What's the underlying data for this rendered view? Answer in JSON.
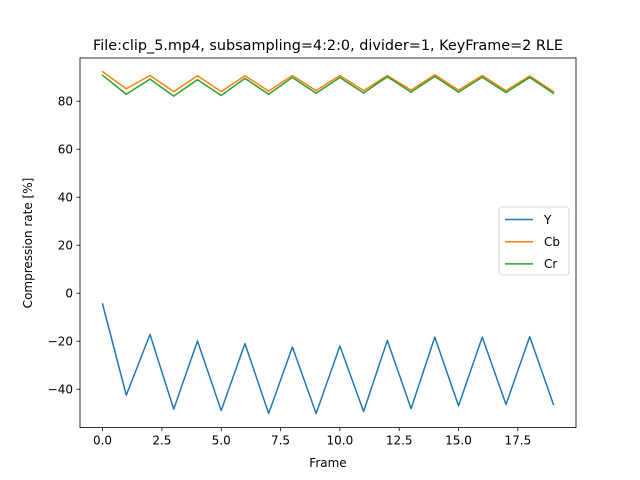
{
  "chart_data": {
    "type": "line",
    "title": "File:clip_5.mp4, subsampling=4:2:0, divider=1, KeyFrame=2 RLE",
    "xlabel": "Frame",
    "ylabel": "Compression rate [%]",
    "xlim": [
      -0.95,
      19.95
    ],
    "ylim": [
      -56,
      98
    ],
    "xticks": [
      0,
      2.5,
      5,
      7.5,
      10,
      12.5,
      15,
      17.5
    ],
    "xtick_labels": [
      "0.0",
      "2.5",
      "5.0",
      "7.5",
      "10.0",
      "12.5",
      "15.0",
      "17.5"
    ],
    "yticks": [
      -40,
      -20,
      0,
      20,
      40,
      60,
      80
    ],
    "ytick_labels": [
      "−40",
      "−20",
      "0",
      "20",
      "40",
      "60",
      "80"
    ],
    "grid": false,
    "legend_position": "center-right",
    "x": [
      0,
      1,
      2,
      3,
      4,
      5,
      6,
      7,
      8,
      9,
      10,
      11,
      12,
      13,
      14,
      15,
      16,
      17,
      18,
      19
    ],
    "series": [
      {
        "name": "Y",
        "color": "#1f77b4",
        "values": [
          -4.5,
          -42.5,
          -17.2,
          -48.3,
          -19.9,
          -48.9,
          -21.0,
          -50.1,
          -22.4,
          -50.1,
          -22.0,
          -49.3,
          -19.7,
          -48.1,
          -18.3,
          -46.9,
          -18.3,
          -46.4,
          -18.1,
          -46.4
        ]
      },
      {
        "name": "Cb",
        "color": "#ff7f0e",
        "values": [
          92.3,
          85.2,
          90.7,
          84.0,
          90.6,
          84.0,
          90.6,
          84.2,
          90.7,
          84.4,
          90.7,
          84.4,
          90.7,
          84.6,
          91.0,
          84.6,
          90.7,
          84.4,
          90.5,
          84.0
        ]
      },
      {
        "name": "Cr",
        "color": "#2ca02c",
        "values": [
          90.8,
          82.9,
          89.2,
          82.1,
          89.0,
          82.4,
          89.5,
          82.9,
          89.9,
          83.3,
          89.9,
          83.4,
          90.2,
          83.8,
          90.3,
          83.8,
          90.0,
          83.6,
          89.9,
          83.3
        ]
      }
    ]
  }
}
